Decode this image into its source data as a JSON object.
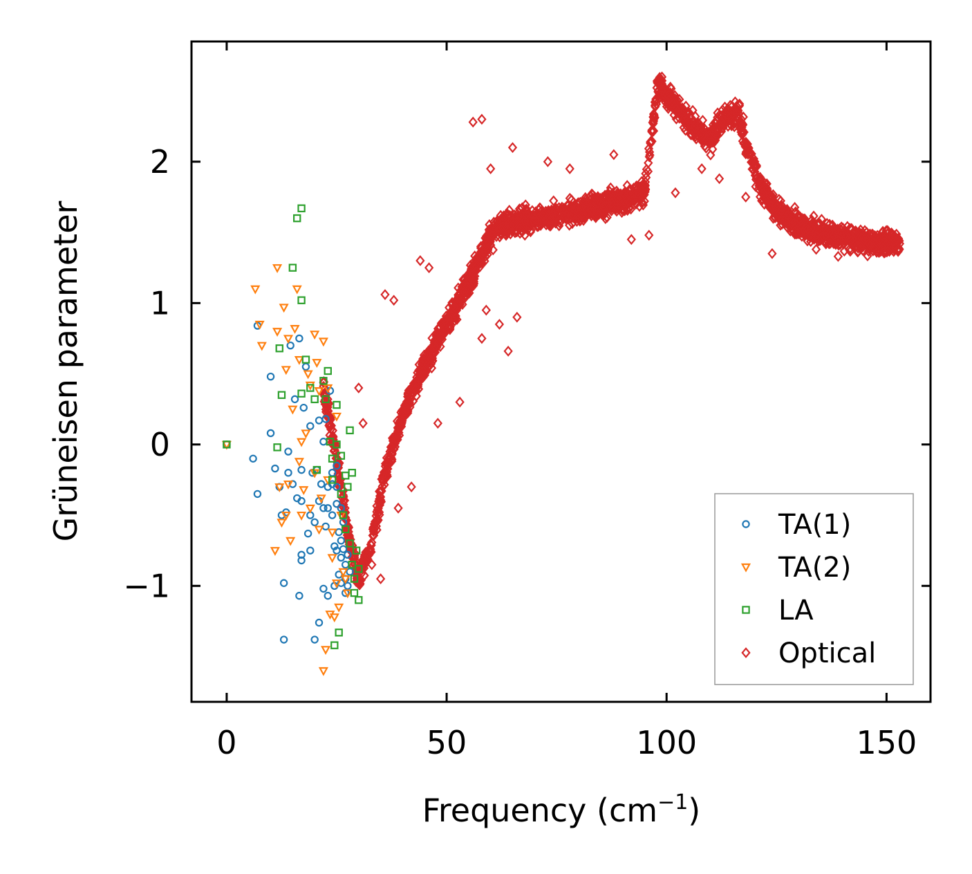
{
  "chart_data": {
    "type": "scatter",
    "title": "",
    "xlabel": "Frequency (cm",
    "xlabel_superscript": "−1",
    "xlabel_suffix": ")",
    "ylabel": "Grüneisen parameter",
    "xlim": [
      -8,
      160
    ],
    "ylim": [
      -1.82,
      2.85
    ],
    "xticks": [
      0,
      50,
      100,
      150
    ],
    "xtick_labels": [
      "0",
      "50",
      "100",
      "150"
    ],
    "yticks": [
      -1,
      0,
      1,
      2
    ],
    "ytick_labels": [
      "−1",
      "0",
      "1",
      "2"
    ],
    "grid": false,
    "legend_position": "lower-right",
    "series": [
      {
        "name": "TA(1)",
        "marker": "circle",
        "color": "#1f77b4",
        "points": [
          [
            0,
            0
          ],
          [
            6,
            -0.1
          ],
          [
            7,
            0.84
          ],
          [
            7,
            -0.35
          ],
          [
            10,
            0.48
          ],
          [
            10,
            0.08
          ],
          [
            11,
            -0.17
          ],
          [
            12,
            -0.3
          ],
          [
            12.5,
            -0.5
          ],
          [
            13,
            -0.98
          ],
          [
            13.5,
            -0.48
          ],
          [
            13,
            -1.38
          ],
          [
            14,
            -0.2
          ],
          [
            14,
            -0.05
          ],
          [
            14.5,
            0.7
          ],
          [
            15,
            -0.28
          ],
          [
            15.5,
            0.32
          ],
          [
            16,
            -0.38
          ],
          [
            16.5,
            0.75
          ],
          [
            16.5,
            -1.07
          ],
          [
            17,
            -0.78
          ],
          [
            17,
            -0.82
          ],
          [
            17,
            -0.18
          ],
          [
            17,
            -0.4
          ],
          [
            17.5,
            0.26
          ],
          [
            18,
            0.55
          ],
          [
            18.5,
            -0.63
          ],
          [
            19,
            0.13
          ],
          [
            19,
            -0.5
          ],
          [
            19,
            -0.75
          ],
          [
            19.5,
            -0.2
          ],
          [
            20,
            -0.55
          ],
          [
            20,
            -1.38
          ],
          [
            20.5,
            -0.18
          ],
          [
            21,
            0.17
          ],
          [
            21,
            -0.4
          ],
          [
            21,
            -1.26
          ],
          [
            21.5,
            -0.28
          ],
          [
            22,
            0.02
          ],
          [
            22,
            -0.45
          ],
          [
            22,
            -1.02
          ],
          [
            22.5,
            0.18
          ],
          [
            22.5,
            -0.58
          ],
          [
            23,
            -0.3
          ],
          [
            23,
            -0.45
          ],
          [
            23,
            -1.07
          ],
          [
            23.5,
            0.38
          ],
          [
            24,
            -0.2
          ],
          [
            24,
            -0.28
          ],
          [
            24,
            -0.5
          ],
          [
            24.5,
            -0.72
          ],
          [
            24.5,
            -1.0
          ],
          [
            25,
            -0.15
          ],
          [
            25,
            -0.3
          ],
          [
            25,
            -0.42
          ],
          [
            25,
            -0.75
          ],
          [
            25.5,
            -0.62
          ],
          [
            25.5,
            -0.92
          ],
          [
            26,
            -0.45
          ],
          [
            26,
            -0.68
          ],
          [
            26,
            -0.8
          ],
          [
            26,
            -0.98
          ],
          [
            26.5,
            -0.55
          ],
          [
            26.5,
            -0.74
          ],
          [
            27,
            -0.85
          ],
          [
            27,
            -0.95
          ],
          [
            27,
            -1.05
          ],
          [
            27.5,
            -0.78
          ],
          [
            27.5,
            -1.0
          ],
          [
            28,
            -0.9
          ]
        ]
      },
      {
        "name": "TA(2)",
        "marker": "triangle-down",
        "color": "#ff7f0e",
        "points": [
          [
            0,
            0
          ],
          [
            6.5,
            1.1
          ],
          [
            7.5,
            0.85
          ],
          [
            8,
            0.7
          ],
          [
            11,
            -0.75
          ],
          [
            11.5,
            1.25
          ],
          [
            11.5,
            0.8
          ],
          [
            12,
            -0.3
          ],
          [
            12.5,
            -0.55
          ],
          [
            13,
            0.97
          ],
          [
            13.5,
            0.53
          ],
          [
            13.5,
            -0.5
          ],
          [
            14,
            0.75
          ],
          [
            14,
            -0.28
          ],
          [
            14.5,
            -0.68
          ],
          [
            15,
            0.25
          ],
          [
            15.5,
            0.82
          ],
          [
            16,
            1.1
          ],
          [
            16.5,
            0.6
          ],
          [
            16.5,
            -0.12
          ],
          [
            17,
            0.02
          ],
          [
            17,
            -0.5
          ],
          [
            17.5,
            -0.32
          ],
          [
            18,
            0.08
          ],
          [
            18.5,
            0.5
          ],
          [
            19,
            0.42
          ],
          [
            19,
            -0.45
          ],
          [
            20,
            0.78
          ],
          [
            20,
            -0.2
          ],
          [
            20.5,
            0.58
          ],
          [
            21,
            0.38
          ],
          [
            21,
            -0.6
          ],
          [
            21.5,
            -0.38
          ],
          [
            22,
            0.73
          ],
          [
            22,
            -1.6
          ],
          [
            22.5,
            -1.45
          ],
          [
            23,
            0.4
          ],
          [
            23,
            -0.25
          ],
          [
            23.5,
            -1.2
          ],
          [
            24,
            -0.62
          ],
          [
            24,
            -0.8
          ],
          [
            24.5,
            -1.22
          ],
          [
            25,
            0.2
          ],
          [
            25,
            -0.98
          ],
          [
            25.5,
            -1.15
          ],
          [
            26,
            -0.5
          ],
          [
            26.5,
            -0.9
          ],
          [
            27,
            -0.95
          ],
          [
            27.5,
            -1.05
          ]
        ]
      },
      {
        "name": "LA",
        "marker": "square",
        "color": "#2ca02c",
        "points": [
          [
            0,
            0
          ],
          [
            11.5,
            -0.02
          ],
          [
            12,
            0.68
          ],
          [
            12.5,
            0.35
          ],
          [
            15,
            1.25
          ],
          [
            16,
            1.6
          ],
          [
            17,
            1.67
          ],
          [
            17,
            1.02
          ],
          [
            17,
            0.36
          ],
          [
            18,
            0.6
          ],
          [
            19,
            0.4
          ],
          [
            20,
            0.32
          ],
          [
            20.5,
            -0.18
          ],
          [
            22,
            0.45
          ],
          [
            22.5,
            0.32
          ],
          [
            23,
            0.52
          ],
          [
            23.5,
            0.02
          ],
          [
            24,
            -0.1
          ],
          [
            24,
            -0.25
          ],
          [
            24.5,
            -1.42
          ],
          [
            25,
            0.28
          ],
          [
            25,
            0.0
          ],
          [
            25.5,
            -1.33
          ],
          [
            26,
            -0.08
          ],
          [
            26,
            -0.35
          ],
          [
            26.5,
            -0.5
          ],
          [
            27,
            -0.22
          ],
          [
            27,
            -0.6
          ],
          [
            27.5,
            -0.3
          ],
          [
            28,
            0.1
          ],
          [
            28,
            -0.7
          ],
          [
            28.5,
            -0.2
          ],
          [
            28.5,
            -0.85
          ],
          [
            29,
            -0.95
          ],
          [
            29,
            -1.05
          ],
          [
            29.5,
            -0.75
          ],
          [
            30,
            -0.88
          ],
          [
            30,
            -1.1
          ]
        ]
      },
      {
        "name": "Optical",
        "marker": "diamond",
        "color": "#d62728",
        "density": "dense",
        "trend": [
          [
            22,
            0.42
          ],
          [
            26,
            -0.3
          ],
          [
            28,
            -0.7
          ],
          [
            30,
            -0.95
          ],
          [
            33,
            -0.7
          ],
          [
            36,
            -0.2
          ],
          [
            40,
            0.2
          ],
          [
            45,
            0.55
          ],
          [
            50,
            0.85
          ],
          [
            55,
            1.15
          ],
          [
            58,
            1.35
          ],
          [
            62,
            1.55
          ],
          [
            70,
            1.6
          ],
          [
            80,
            1.65
          ],
          [
            90,
            1.72
          ],
          [
            95,
            1.78
          ],
          [
            98,
            2.55
          ],
          [
            102,
            2.4
          ],
          [
            106,
            2.25
          ],
          [
            110,
            2.15
          ],
          [
            113,
            2.3
          ],
          [
            116,
            2.35
          ],
          [
            118,
            2.15
          ],
          [
            121,
            1.85
          ],
          [
            125,
            1.65
          ],
          [
            130,
            1.55
          ],
          [
            135,
            1.5
          ],
          [
            140,
            1.47
          ],
          [
            145,
            1.44
          ],
          [
            150,
            1.42
          ],
          [
            153,
            1.42
          ]
        ],
        "spread": 0.14,
        "outliers": [
          [
            30,
            0.4
          ],
          [
            31,
            0.15
          ],
          [
            36,
            1.06
          ],
          [
            38,
            1.02
          ],
          [
            44,
            1.3
          ],
          [
            46,
            1.25
          ],
          [
            56,
            2.28
          ],
          [
            58,
            2.3
          ],
          [
            60,
            1.95
          ],
          [
            65,
            2.1
          ],
          [
            58,
            0.75
          ],
          [
            59,
            0.95
          ],
          [
            62,
            0.85
          ],
          [
            64,
            0.66
          ],
          [
            66,
            0.9
          ],
          [
            73,
            2.0
          ],
          [
            78,
            1.95
          ],
          [
            88,
            2.05
          ],
          [
            92,
            1.45
          ],
          [
            96,
            1.48
          ],
          [
            102,
            1.78
          ],
          [
            108,
            1.95
          ],
          [
            112,
            1.88
          ],
          [
            118,
            1.75
          ],
          [
            124,
            1.35
          ],
          [
            134,
            1.38
          ],
          [
            139,
            1.33
          ],
          [
            145,
            1.45
          ],
          [
            150,
            1.42
          ],
          [
            153,
            1.42
          ],
          [
            33,
            -0.85
          ],
          [
            35,
            -0.95
          ],
          [
            39,
            -0.45
          ],
          [
            42,
            -0.3
          ],
          [
            48,
            0.15
          ],
          [
            53,
            0.3
          ]
        ]
      }
    ]
  }
}
